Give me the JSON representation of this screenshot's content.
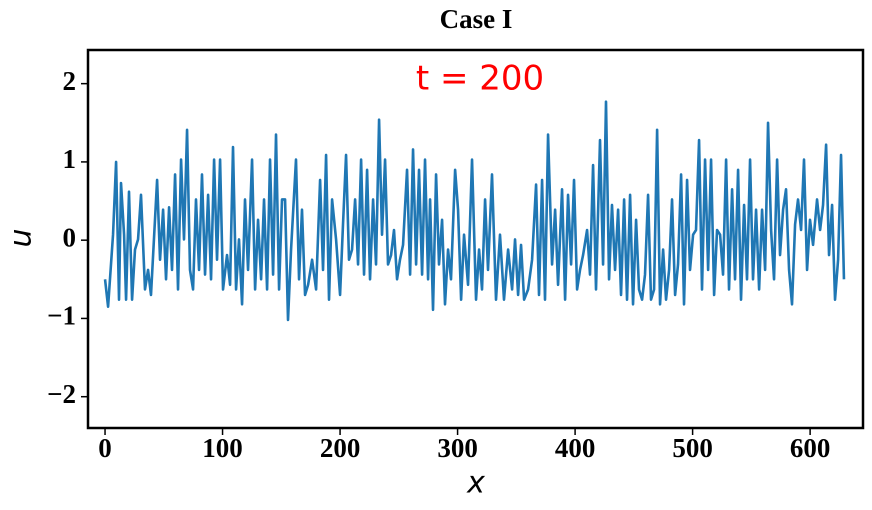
{
  "chart_data": {
    "type": "line",
    "title": "Case I",
    "annotation": "t = 200",
    "annotation_color": "#ff0000",
    "x_label": "x",
    "y_label": "u",
    "color": "#1f77b4",
    "xlim": [
      -14.5,
      645
    ],
    "ylim": [
      -2.4,
      2.43
    ],
    "xticks": [
      0,
      100,
      200,
      300,
      400,
      500,
      600
    ],
    "yticks": [
      {
        "value": -2,
        "label": "−2"
      },
      {
        "value": -1,
        "label": "−1"
      },
      0,
      1,
      2
    ],
    "x": [
      0,
      2.6,
      6.8,
      9.4,
      11.9,
      13.6,
      16.2,
      17.9,
      20.4,
      23.0,
      25.5,
      28.1,
      30.6,
      34.0,
      36.6,
      39.1,
      44.3,
      46.8,
      49.4,
      51.9,
      54.5,
      57.0,
      59.6,
      62.1,
      64.7,
      67.2,
      69.8,
      72.3,
      74.9,
      77.4,
      80.0,
      82.5,
      85.1,
      87.7,
      90.2,
      92.8,
      95.3,
      97.9,
      100.4,
      103.8,
      106.4,
      108.9,
      111.5,
      114.0,
      116.6,
      119.1,
      121.7,
      125.1,
      127.7,
      130.2,
      132.8,
      135.3,
      137.9,
      140.4,
      143.0,
      145.5,
      148.1,
      150.6,
      153.2,
      155.7,
      158.3,
      162.5,
      165.1,
      167.6,
      170.2,
      172.8,
      176.2,
      179.6,
      183.0,
      185.5,
      188.1,
      190.6,
      193.2,
      196.6,
      200.0,
      202.5,
      205.1,
      207.6,
      210.2,
      212.8,
      215.3,
      217.9,
      220.4,
      223.0,
      225.5,
      228.1,
      230.6,
      233.2,
      235.7,
      238.3,
      240.8,
      243.4,
      245.9,
      248.5,
      251.0,
      253.6,
      257.0,
      259.6,
      262.1,
      264.7,
      267.2,
      269.8,
      272.3,
      274.9,
      276.6,
      279.1,
      281.7,
      284.2,
      286.8,
      289.3,
      291.9,
      294.4,
      297.9,
      300.4,
      303.0,
      305.5,
      308.9,
      312.3,
      315.7,
      318.3,
      320.8,
      323.4,
      325.9,
      329.3,
      332.7,
      336.1,
      339.5,
      343.0,
      346.4,
      348.9,
      351.5,
      354.0,
      356.6,
      360.0,
      363.4,
      366.8,
      369.3,
      371.9,
      374.4,
      377.0,
      380.4,
      383.0,
      385.5,
      388.9,
      391.5,
      394.0,
      396.6,
      399.1,
      401.7,
      404.2,
      406.8,
      410.2,
      412.7,
      415.3,
      417.8,
      421.2,
      423.8,
      426.3,
      428.9,
      431.4,
      434.0,
      436.6,
      439.1,
      441.7,
      444.2,
      446.8,
      449.3,
      451.9,
      454.4,
      457.0,
      459.5,
      462.1,
      464.6,
      467.2,
      469.8,
      472.3,
      474.9,
      477.4,
      480.0,
      482.5,
      485.1,
      487.6,
      490.2,
      492.7,
      495.3,
      497.8,
      500.4,
      502.9,
      505.5,
      508.0,
      510.6,
      513.2,
      515.7,
      518.3,
      520.8,
      523.4,
      525.9,
      528.5,
      531.0,
      533.6,
      536.1,
      538.7,
      541.2,
      543.8,
      546.3,
      548.9,
      551.4,
      554.0,
      556.6,
      559.1,
      561.7,
      564.2,
      566.8,
      569.3,
      571.9,
      574.4,
      577.0,
      579.5,
      582.1,
      584.6,
      587.2,
      589.7,
      592.3,
      594.8,
      597.4,
      599.9,
      602.5,
      605.9,
      608.5,
      611.0,
      613.6,
      616.1,
      618.7,
      621.2,
      623.8,
      626.3,
      628.8
    ],
    "values": [
      -0.5,
      -0.85,
      0.07,
      1.0,
      -0.76,
      0.73,
      0.07,
      -0.76,
      0.62,
      -0.76,
      -0.12,
      0.01,
      0.58,
      -0.63,
      -0.38,
      -0.7,
      0.77,
      -0.25,
      0.39,
      -0.5,
      0.42,
      -0.38,
      0.84,
      -0.63,
      1.03,
      0.01,
      1.41,
      -0.38,
      -0.63,
      0.52,
      -0.38,
      0.84,
      -0.44,
      0.58,
      -0.5,
      1.03,
      -0.25,
      1.03,
      -0.63,
      -0.19,
      -0.57,
      1.19,
      -0.63,
      0.01,
      -0.82,
      0.52,
      -0.38,
      1.03,
      -0.63,
      0.26,
      -0.5,
      0.52,
      -0.63,
      1.03,
      -0.44,
      1.35,
      -0.63,
      0.52,
      0.52,
      -1.02,
      -0.12,
      1.03,
      -0.5,
      0.39,
      -0.7,
      -0.57,
      -0.25,
      -0.63,
      0.77,
      -0.38,
      1.09,
      -0.76,
      0.52,
      0.01,
      -0.7,
      0.2,
      1.09,
      -0.25,
      -0.12,
      0.52,
      -0.31,
      1.03,
      -0.44,
      0.9,
      -0.5,
      0.52,
      -0.31,
      1.54,
      0.07,
      1.03,
      -0.31,
      -0.19,
      0.13,
      -0.5,
      -0.25,
      -0.06,
      0.9,
      -0.44,
      1.16,
      -0.31,
      0.9,
      -0.44,
      1.03,
      -0.5,
      0.52,
      -0.89,
      0.84,
      -0.31,
      0.26,
      -0.82,
      -0.12,
      -0.5,
      0.9,
      0.39,
      -0.76,
      0.07,
      -0.57,
      1.03,
      -0.76,
      -0.12,
      -0.63,
      0.52,
      -0.38,
      0.84,
      -0.76,
      0.07,
      -0.76,
      -0.12,
      -0.63,
      0.01,
      -0.7,
      -0.06,
      -0.76,
      -0.63,
      -0.25,
      0.71,
      -0.7,
      0.77,
      -0.76,
      1.35,
      -0.31,
      0.39,
      -0.57,
      0.65,
      -0.76,
      0.58,
      -0.31,
      0.77,
      -0.63,
      -0.38,
      -0.19,
      0.13,
      -0.44,
      0.96,
      -0.63,
      1.28,
      -0.31,
      1.77,
      -0.5,
      0.45,
      -0.38,
      0.39,
      -0.7,
      0.52,
      -0.76,
      0.58,
      -0.82,
      0.26,
      -0.63,
      -0.76,
      -0.44,
      0.58,
      -0.76,
      -0.63,
      1.41,
      -0.82,
      -0.12,
      -0.76,
      -0.38,
      0.52,
      -0.7,
      -0.31,
      0.84,
      -0.82,
      0.77,
      -0.38,
      0.07,
      0.13,
      1.28,
      -0.63,
      1.03,
      -0.38,
      1.03,
      -0.7,
      0.13,
      0.07,
      -0.44,
      1.03,
      -0.63,
      0.65,
      -0.5,
      0.9,
      -0.76,
      0.45,
      -0.5,
      1.03,
      -0.5,
      0.39,
      -0.63,
      0.39,
      -0.38,
      1.5,
      0.13,
      -0.5,
      1.03,
      -0.19,
      0.39,
      0.65,
      -0.38,
      -0.82,
      0.2,
      0.52,
      0.13,
      1.03,
      -0.38,
      0.26,
      -0.06,
      0.52,
      0.13,
      0.45,
      1.22,
      -0.19,
      0.45,
      -0.76,
      -0.25,
      1.09,
      -0.5
    ]
  }
}
